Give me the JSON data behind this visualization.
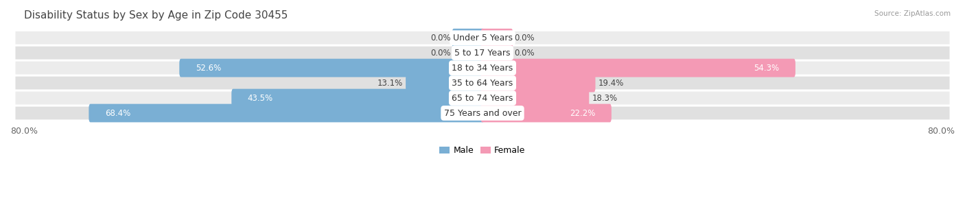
{
  "title": "Disability Status by Sex by Age in Zip Code 30455",
  "source": "Source: ZipAtlas.com",
  "categories": [
    "Under 5 Years",
    "5 to 17 Years",
    "18 to 34 Years",
    "35 to 64 Years",
    "65 to 74 Years",
    "75 Years and over"
  ],
  "male_values": [
    0.0,
    0.0,
    52.6,
    13.1,
    43.5,
    68.4
  ],
  "female_values": [
    0.0,
    0.0,
    54.3,
    19.4,
    18.3,
    22.2
  ],
  "male_color": "#7aafd4",
  "female_color": "#f49ab5",
  "male_color_dark": "#5b9ec9",
  "female_color_dark": "#e8688e",
  "row_bg_odd": "#ececec",
  "row_bg_even": "#e0e0e0",
  "max_val": 80.0,
  "title_fontsize": 11,
  "label_fontsize": 9,
  "tick_fontsize": 9,
  "cat_fontsize": 9,
  "value_fontsize": 8.5,
  "background_color": "#ffffff",
  "zero_bar_size": 5.0
}
